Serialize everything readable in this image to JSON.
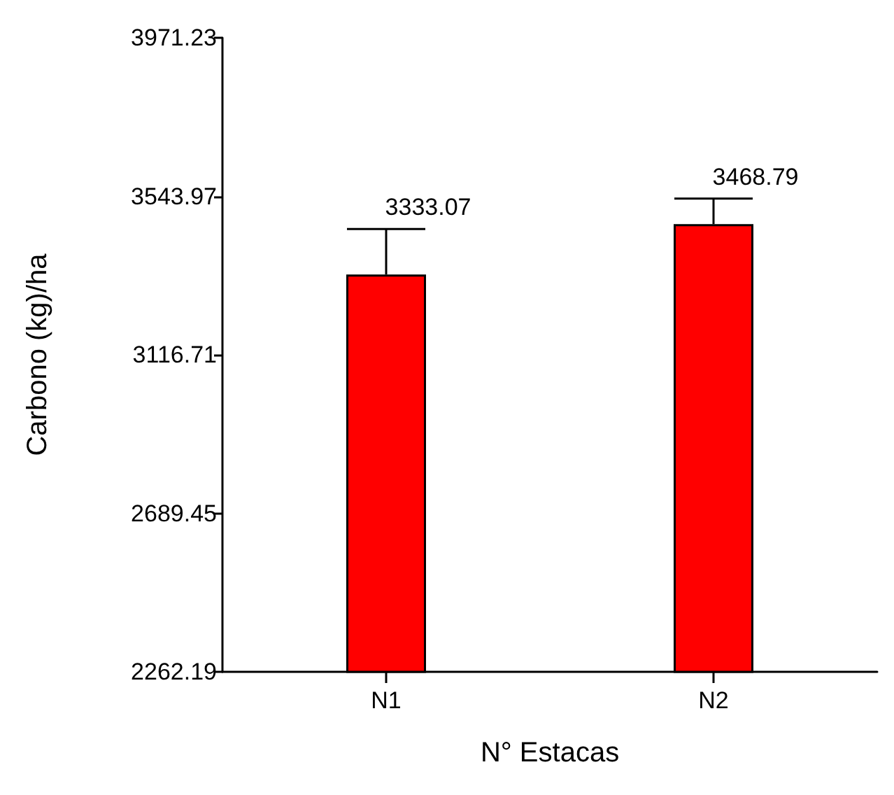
{
  "chart_data": {
    "type": "bar",
    "xlabel": "N° Estacas",
    "ylabel": "Carbono (kg)/ha",
    "categories": [
      "N1",
      "N2"
    ],
    "values": [
      3333.07,
      3468.79
    ],
    "color": "#ff0000",
    "errors": [
      [
        3333.07,
        3456
      ],
      [
        3468.79,
        3538
      ]
    ],
    "data_labels": true,
    "ylim": [
      2262.19,
      3971.23
    ],
    "yticks": [
      2262.19,
      2689.45,
      3116.71,
      3543.97,
      3971.23
    ],
    "grid": false
  }
}
